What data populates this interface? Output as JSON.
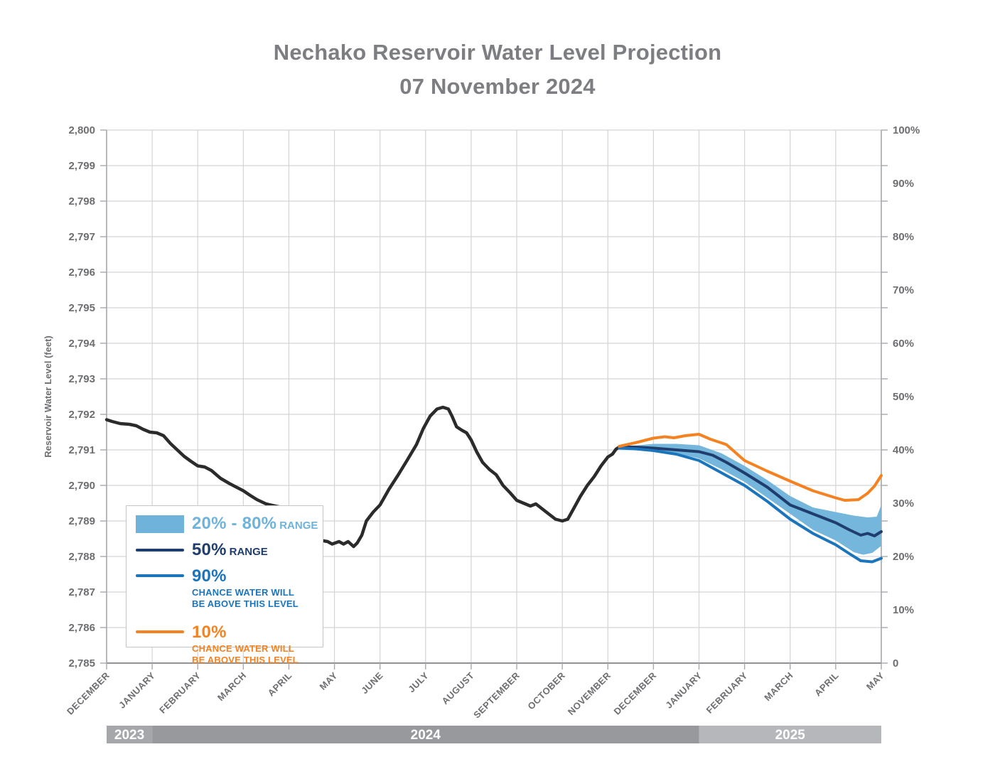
{
  "title": {
    "line1": "Nechako Reservoir Water Level Projection",
    "line2": "07 November 2024"
  },
  "colors": {
    "history_line": "#2b2b2b",
    "median_line": "#1f3d6d",
    "p90_line": "#1b75bc",
    "p10_line": "#f58220",
    "band_fill": "#74b6dc",
    "gridline": "#d2d4d5",
    "axis_line": "#a7a9ac",
    "tick_text": "#6d6e71",
    "title_text": "#7d7e82",
    "year_band_2023": "#a5a7aa",
    "year_band_2024": "#97999c",
    "year_band_2025": "#b5b7ba",
    "year_text": "#ffffff"
  },
  "legend": {
    "band": {
      "title": "20% - 80%",
      "suffix": "RANGE"
    },
    "median": {
      "title": "50%",
      "suffix": "RANGE"
    },
    "p90": {
      "title": "90%",
      "sub1": "CHANCE WATER WILL",
      "sub2": "BE ABOVE THIS LEVEL"
    },
    "p10": {
      "title": "10%",
      "sub1": "CHANCE WATER WILL",
      "sub2": "BE ABOVE THIS LEVEL"
    }
  },
  "chart_data": {
    "type": "line",
    "title": "Nechako Reservoir Water Level Projection 07 November 2024",
    "left_axis": {
      "label": "Reservoir Water Level (feet)",
      "min": 2785,
      "max": 2800,
      "step": 1,
      "tick_labels": [
        "2,800",
        "2,799",
        "2,798",
        "2,797",
        "2,796",
        "2,795",
        "2,794",
        "2,793",
        "2,792",
        "2,791",
        "2,790",
        "2,789",
        "2,788",
        "2,787",
        "2,786",
        "2,785"
      ]
    },
    "right_axis": {
      "min": 0,
      "max": 100,
      "step": 10,
      "tick_labels": [
        "100%",
        "90%",
        "80%",
        "70%",
        "60%",
        "50%",
        "40%",
        "30%",
        "20%",
        "10%",
        "0"
      ]
    },
    "x_axis": {
      "labels": [
        "DECEMBER",
        "JANUARY",
        "FEBRUARY",
        "MARCH",
        "APRIL",
        "MAY",
        "JUNE",
        "JULY",
        "AUGUST",
        "SEPTEMBER",
        "OCTOBER",
        "NOVEMBER",
        "DECEMBER",
        "JANUARY",
        "FEBRUARY",
        "MARCH",
        "APRIL",
        "MAY"
      ]
    },
    "year_bands": [
      {
        "label": "2023",
        "start": 0,
        "end": 1,
        "color": "#a5a7aa"
      },
      {
        "label": "2024",
        "start": 1,
        "end": 13,
        "color": "#97999c"
      },
      {
        "label": "2025",
        "start": 13,
        "end": 17,
        "color": "#b5b7ba"
      }
    ],
    "grid": true,
    "legend_position": "lower-left",
    "series": [
      {
        "name": "historical water level",
        "kind": "line",
        "color": "#2b2b2b",
        "width": 4.5,
        "points": [
          [
            0.0,
            2791.85
          ],
          [
            0.12,
            2791.8
          ],
          [
            0.3,
            2791.74
          ],
          [
            0.5,
            2791.72
          ],
          [
            0.65,
            2791.68
          ],
          [
            0.8,
            2791.58
          ],
          [
            0.95,
            2791.5
          ],
          [
            1.1,
            2791.48
          ],
          [
            1.25,
            2791.4
          ],
          [
            1.4,
            2791.18
          ],
          [
            1.55,
            2791.0
          ],
          [
            1.7,
            2790.82
          ],
          [
            1.85,
            2790.68
          ],
          [
            2.0,
            2790.55
          ],
          [
            2.15,
            2790.52
          ],
          [
            2.3,
            2790.42
          ],
          [
            2.5,
            2790.2
          ],
          [
            2.7,
            2790.05
          ],
          [
            2.85,
            2789.95
          ],
          [
            3.0,
            2789.85
          ],
          [
            3.15,
            2789.72
          ],
          [
            3.3,
            2789.6
          ],
          [
            3.5,
            2789.48
          ],
          [
            3.7,
            2789.42
          ],
          [
            3.85,
            2789.38
          ],
          [
            4.0,
            2789.3
          ],
          [
            4.15,
            2789.12
          ],
          [
            4.3,
            2788.95
          ],
          [
            4.45,
            2788.8
          ],
          [
            4.6,
            2788.62
          ],
          [
            4.72,
            2788.45
          ],
          [
            4.85,
            2788.42
          ],
          [
            4.95,
            2788.35
          ],
          [
            5.1,
            2788.42
          ],
          [
            5.2,
            2788.35
          ],
          [
            5.3,
            2788.42
          ],
          [
            5.42,
            2788.28
          ],
          [
            5.5,
            2788.38
          ],
          [
            5.6,
            2788.6
          ],
          [
            5.7,
            2789.0
          ],
          [
            5.85,
            2789.25
          ],
          [
            6.0,
            2789.45
          ],
          [
            6.2,
            2789.9
          ],
          [
            6.4,
            2790.3
          ],
          [
            6.6,
            2790.72
          ],
          [
            6.8,
            2791.15
          ],
          [
            6.95,
            2791.6
          ],
          [
            7.1,
            2791.95
          ],
          [
            7.25,
            2792.15
          ],
          [
            7.38,
            2792.2
          ],
          [
            7.5,
            2792.15
          ],
          [
            7.58,
            2791.95
          ],
          [
            7.68,
            2791.65
          ],
          [
            7.8,
            2791.55
          ],
          [
            7.9,
            2791.48
          ],
          [
            8.0,
            2791.28
          ],
          [
            8.12,
            2790.95
          ],
          [
            8.25,
            2790.65
          ],
          [
            8.4,
            2790.45
          ],
          [
            8.55,
            2790.3
          ],
          [
            8.7,
            2790.0
          ],
          [
            8.85,
            2789.8
          ],
          [
            9.0,
            2789.58
          ],
          [
            9.15,
            2789.5
          ],
          [
            9.3,
            2789.42
          ],
          [
            9.42,
            2789.48
          ],
          [
            9.55,
            2789.35
          ],
          [
            9.7,
            2789.2
          ],
          [
            9.85,
            2789.05
          ],
          [
            10.0,
            2789.0
          ],
          [
            10.12,
            2789.05
          ],
          [
            10.25,
            2789.35
          ],
          [
            10.4,
            2789.7
          ],
          [
            10.55,
            2790.0
          ],
          [
            10.7,
            2790.25
          ],
          [
            10.85,
            2790.55
          ],
          [
            11.0,
            2790.8
          ],
          [
            11.1,
            2790.88
          ],
          [
            11.18,
            2791.02
          ],
          [
            11.25,
            2791.08
          ]
        ]
      },
      {
        "name": "50% range projection",
        "kind": "line",
        "color": "#1f3d6d",
        "width": 4,
        "points": [
          [
            11.25,
            2791.08
          ],
          [
            11.6,
            2791.08
          ],
          [
            12.0,
            2791.05
          ],
          [
            12.5,
            2791.0
          ],
          [
            13.0,
            2790.95
          ],
          [
            13.3,
            2790.85
          ],
          [
            13.6,
            2790.65
          ],
          [
            14.0,
            2790.35
          ],
          [
            14.5,
            2789.95
          ],
          [
            15.0,
            2789.45
          ],
          [
            15.5,
            2789.2
          ],
          [
            16.0,
            2788.95
          ],
          [
            16.3,
            2788.75
          ],
          [
            16.55,
            2788.6
          ],
          [
            16.7,
            2788.65
          ],
          [
            16.85,
            2788.58
          ],
          [
            17.0,
            2788.7
          ]
        ]
      },
      {
        "name": "90% chance water will be above this level",
        "kind": "line",
        "color": "#1b75bc",
        "width": 4,
        "points": [
          [
            11.25,
            2791.05
          ],
          [
            11.6,
            2791.03
          ],
          [
            12.0,
            2790.98
          ],
          [
            12.5,
            2790.88
          ],
          [
            13.0,
            2790.7
          ],
          [
            13.5,
            2790.35
          ],
          [
            14.0,
            2790.0
          ],
          [
            14.5,
            2789.55
          ],
          [
            15.0,
            2789.05
          ],
          [
            15.5,
            2788.65
          ],
          [
            16.0,
            2788.33
          ],
          [
            16.3,
            2788.08
          ],
          [
            16.55,
            2787.88
          ],
          [
            16.8,
            2787.85
          ],
          [
            17.0,
            2787.95
          ]
        ]
      },
      {
        "name": "10% chance water will be above this level",
        "kind": "line",
        "color": "#f58220",
        "width": 4,
        "points": [
          [
            11.25,
            2791.1
          ],
          [
            11.6,
            2791.2
          ],
          [
            12.0,
            2791.33
          ],
          [
            12.25,
            2791.37
          ],
          [
            12.45,
            2791.34
          ],
          [
            12.7,
            2791.4
          ],
          [
            13.0,
            2791.44
          ],
          [
            13.25,
            2791.3
          ],
          [
            13.6,
            2791.15
          ],
          [
            14.0,
            2790.7
          ],
          [
            14.5,
            2790.4
          ],
          [
            15.0,
            2790.12
          ],
          [
            15.5,
            2789.85
          ],
          [
            16.0,
            2789.65
          ],
          [
            16.2,
            2789.58
          ],
          [
            16.5,
            2789.6
          ],
          [
            16.7,
            2789.78
          ],
          [
            16.85,
            2789.98
          ],
          [
            17.0,
            2790.28
          ]
        ]
      },
      {
        "name": "20% - 80% range band",
        "kind": "band",
        "color": "#74b6dc",
        "top": [
          [
            11.6,
            2791.12
          ],
          [
            12.0,
            2791.17
          ],
          [
            12.5,
            2791.17
          ],
          [
            13.0,
            2791.13
          ],
          [
            13.5,
            2790.9
          ],
          [
            14.0,
            2790.55
          ],
          [
            14.5,
            2790.15
          ],
          [
            15.0,
            2789.7
          ],
          [
            15.5,
            2789.38
          ],
          [
            16.0,
            2789.25
          ],
          [
            16.4,
            2789.15
          ],
          [
            16.7,
            2789.1
          ],
          [
            16.9,
            2789.12
          ],
          [
            17.0,
            2789.45
          ]
        ],
        "bottom": [
          [
            11.6,
            2791.02
          ],
          [
            12.0,
            2790.95
          ],
          [
            12.5,
            2790.9
          ],
          [
            13.0,
            2790.76
          ],
          [
            13.5,
            2790.45
          ],
          [
            14.0,
            2790.1
          ],
          [
            14.5,
            2789.65
          ],
          [
            15.0,
            2789.2
          ],
          [
            15.5,
            2788.75
          ],
          [
            16.0,
            2788.45
          ],
          [
            16.4,
            2788.12
          ],
          [
            16.6,
            2788.05
          ],
          [
            16.8,
            2788.1
          ],
          [
            17.0,
            2788.3
          ]
        ]
      }
    ]
  }
}
